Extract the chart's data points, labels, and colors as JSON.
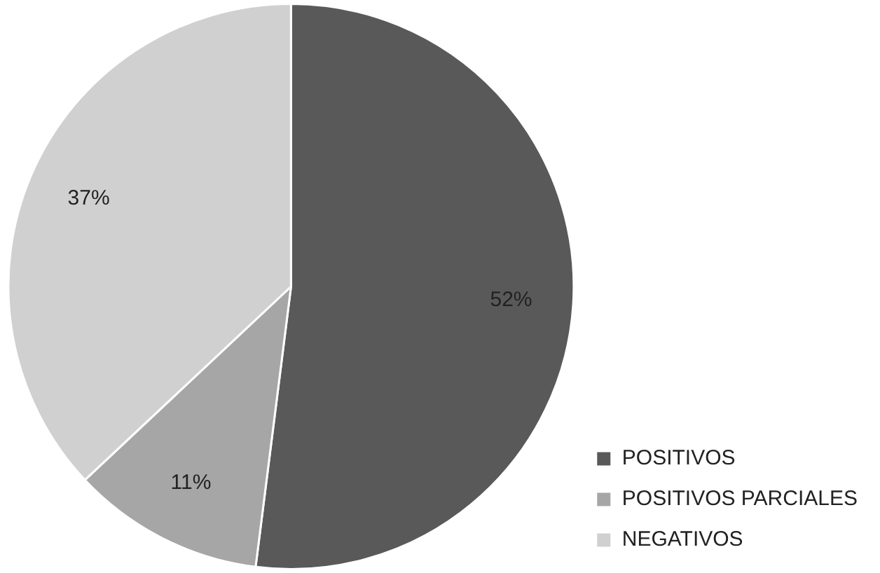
{
  "chart_data": {
    "type": "pie",
    "categories": [
      "POSITIVOS",
      "POSITIVOS PARCIALES",
      "NEGATIVOS"
    ],
    "values": [
      52,
      11,
      37
    ],
    "colors": [
      "#595959",
      "#a6a6a6",
      "#d0d0d0"
    ],
    "value_labels": [
      "52%",
      "11%",
      "37%"
    ],
    "legend": "right"
  }
}
